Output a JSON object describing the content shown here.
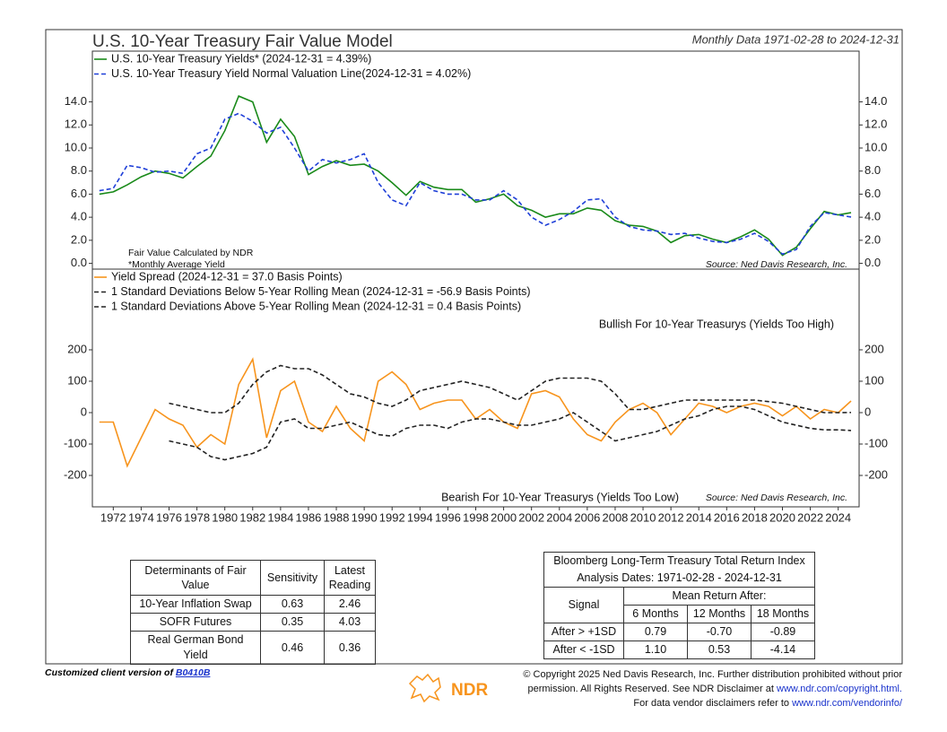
{
  "chart_data": [
    {
      "type": "line",
      "title": "U.S. 10-Year Treasury Fair Value Model",
      "subtitle": "Monthly Data 1971-02-28 to 2024-12-31",
      "xlim": [
        1970.5,
        2025.5
      ],
      "ylim": [
        -0.5,
        18.4
      ],
      "yticks": [
        {
          "value": 0,
          "label": "0.0"
        },
        {
          "value": 2,
          "label": "2.0"
        },
        {
          "value": 4,
          "label": "4.0"
        },
        {
          "value": 6,
          "label": "6.0"
        },
        {
          "value": 8,
          "label": "8.0"
        },
        {
          "value": 10,
          "label": "10.0"
        },
        {
          "value": 12,
          "label": "12.0"
        },
        {
          "value": 14,
          "label": "14.0"
        }
      ],
      "x": [
        1971,
        1972,
        1973,
        1974,
        1975,
        1976,
        1977,
        1978,
        1979,
        1980,
        1981,
        1982,
        1983,
        1984,
        1985,
        1986,
        1987,
        1988,
        1989,
        1990,
        1991,
        1992,
        1993,
        1994,
        1995,
        1996,
        1997,
        1998,
        1999,
        2000,
        2001,
        2002,
        2003,
        2004,
        2005,
        2006,
        2007,
        2008,
        2009,
        2010,
        2011,
        2012,
        2013,
        2014,
        2015,
        2016,
        2017,
        2018,
        2019,
        2020,
        2021,
        2022,
        2023,
        2024,
        2024.92
      ],
      "series": [
        {
          "name": "U.S. 10-Year Treasury Yields* (2024-12-31 = 4.39%)",
          "color": "#1a8a1a",
          "style": "solid",
          "values": [
            6.0,
            6.2,
            6.8,
            7.5,
            8.0,
            7.8,
            7.4,
            8.4,
            9.3,
            11.5,
            14.5,
            14.0,
            10.5,
            12.5,
            11.0,
            7.7,
            8.4,
            8.9,
            8.5,
            8.6,
            8.0,
            7.0,
            5.9,
            7.1,
            6.6,
            6.4,
            6.4,
            5.3,
            5.6,
            6.0,
            5.0,
            4.6,
            4.0,
            4.3,
            4.3,
            4.8,
            4.6,
            3.7,
            3.3,
            3.2,
            2.8,
            1.8,
            2.4,
            2.5,
            2.1,
            1.8,
            2.3,
            2.9,
            2.1,
            0.7,
            1.4,
            3.0,
            4.5,
            4.2,
            4.39
          ]
        },
        {
          "name": "U.S. 10-Year Treasury Yield Normal Valuation Line(2024-12-31 = 4.02%)",
          "color": "#1f3fd8",
          "style": "dashed",
          "values": [
            6.3,
            6.5,
            8.5,
            8.3,
            7.9,
            8.0,
            7.8,
            9.5,
            10.0,
            12.5,
            13.0,
            12.3,
            11.3,
            11.8,
            10.0,
            8.0,
            9.0,
            8.7,
            9.0,
            9.5,
            7.0,
            5.5,
            5.0,
            7.0,
            6.3,
            6.0,
            6.0,
            5.5,
            5.5,
            6.3,
            5.5,
            4.0,
            3.3,
            3.8,
            4.5,
            5.5,
            5.6,
            4.0,
            3.2,
            2.9,
            2.8,
            2.5,
            2.6,
            2.2,
            1.9,
            1.8,
            2.1,
            2.6,
            1.9,
            0.8,
            1.2,
            3.2,
            4.4,
            4.2,
            4.02
          ]
        }
      ],
      "notes": [
        "Fair Value Calculated by NDR",
        "*Monthly Average Yield"
      ],
      "source": "Source:  Ned Davis Research, Inc."
    },
    {
      "type": "line",
      "xlim": [
        1970.5,
        2025.5
      ],
      "ylim": [
        -300,
        457
      ],
      "yticks": [
        -200,
        -100,
        0,
        100,
        200
      ],
      "xticks": [
        1972,
        1974,
        1976,
        1978,
        1980,
        1982,
        1984,
        1986,
        1988,
        1990,
        1992,
        1994,
        1996,
        1998,
        2000,
        2002,
        2004,
        2006,
        2008,
        2010,
        2012,
        2014,
        2016,
        2018,
        2020,
        2022,
        2024
      ],
      "x": [
        1971,
        1972,
        1973,
        1974,
        1975,
        1976,
        1977,
        1978,
        1979,
        1980,
        1981,
        1982,
        1983,
        1984,
        1985,
        1986,
        1987,
        1988,
        1989,
        1990,
        1991,
        1992,
        1993,
        1994,
        1995,
        1996,
        1997,
        1998,
        1999,
        2000,
        2001,
        2002,
        2003,
        2004,
        2005,
        2006,
        2007,
        2008,
        2009,
        2010,
        2011,
        2012,
        2013,
        2014,
        2015,
        2016,
        2017,
        2018,
        2019,
        2020,
        2021,
        2022,
        2023,
        2024,
        2024.92
      ],
      "series": [
        {
          "name": "Yield Spread (2024-12-31 = 37.0 Basis Points)",
          "color": "#f7941d",
          "style": "solid",
          "values": [
            -30,
            -30,
            -170,
            -80,
            10,
            -20,
            -40,
            -110,
            -70,
            -100,
            90,
            170,
            -80,
            70,
            100,
            -30,
            -60,
            20,
            -50,
            -90,
            100,
            130,
            90,
            10,
            30,
            40,
            40,
            -20,
            10,
            -30,
            -50,
            60,
            70,
            50,
            -20,
            -70,
            -90,
            -30,
            10,
            30,
            0,
            -70,
            -20,
            30,
            20,
            0,
            20,
            30,
            20,
            -10,
            20,
            -20,
            10,
            0,
            37
          ]
        },
        {
          "name": "1 Standard Deviations Below 5-Year Rolling Mean (2024-12-31 = -56.9 Basis Points)",
          "color": "#222222",
          "style": "dashed",
          "values": [
            null,
            null,
            null,
            null,
            null,
            -90,
            -100,
            -110,
            -140,
            -150,
            -140,
            -130,
            -110,
            -30,
            -20,
            -50,
            -50,
            -40,
            -30,
            -50,
            -70,
            -75,
            -50,
            -40,
            -40,
            -50,
            -30,
            -20,
            -20,
            -30,
            -40,
            -40,
            -30,
            -20,
            0,
            -30,
            -60,
            -90,
            -80,
            -70,
            -60,
            -40,
            -20,
            -10,
            10,
            20,
            20,
            10,
            -10,
            -30,
            -40,
            -50,
            -55,
            -55,
            -56.9
          ]
        },
        {
          "name": "1 Standard Deviations Above 5-Year Rolling Mean (2024-12-31 = 0.4 Basis Points)",
          "color": "#222222",
          "style": "dashed",
          "values": [
            null,
            null,
            null,
            null,
            null,
            30,
            20,
            10,
            0,
            0,
            30,
            90,
            130,
            150,
            140,
            140,
            120,
            90,
            60,
            50,
            30,
            20,
            40,
            70,
            80,
            90,
            100,
            90,
            80,
            60,
            40,
            70,
            100,
            110,
            110,
            110,
            100,
            60,
            10,
            10,
            20,
            30,
            40,
            40,
            40,
            40,
            40,
            40,
            35,
            30,
            20,
            10,
            0,
            0,
            0.4
          ]
        }
      ],
      "annotations": [
        "Bullish For 10-Year Treasurys (Yields Too High)",
        "Bearish For 10-Year Treasurys (Yields Too Low)"
      ],
      "source": "Source:  Ned Davis Research, Inc."
    }
  ],
  "table1": {
    "header": [
      "Determinants of Fair Value",
      "Sensitivity",
      "Latest Reading"
    ],
    "rows": [
      [
        "10-Year Inflation Swap",
        "0.63",
        "2.46"
      ],
      [
        "SOFR Futures",
        "0.35",
        "4.03"
      ],
      [
        "Real German Bond Yield",
        "0.46",
        "0.36"
      ]
    ]
  },
  "table2": {
    "title": [
      "Bloomberg Long-Term Treasury Total Return Index",
      "Analysis Dates: 1971-02-28 - 2024-12-31"
    ],
    "signal": "Signal",
    "group": "Mean Return After:",
    "columns": [
      "6 Months",
      "12 Months",
      "18 Months"
    ],
    "rows": [
      [
        "After > +1SD",
        "0.79",
        "-0.70",
        "-0.89"
      ],
      [
        "After < -1SD",
        "1.10",
        "0.53",
        "-4.14"
      ]
    ]
  },
  "footer": {
    "client": "Customized client version of",
    "code": "B0410B",
    "logo": "NDR",
    "copyright": [
      "© Copyright 2025 Ned Davis Research, Inc. Further distribution prohibited without prior",
      "permission. All Rights Reserved. See NDR Disclaimer at",
      "www.ndr.com/copyright.html.",
      "For data vendor disclaimers refer to",
      "www.ndr.com/vendorinfo/"
    ]
  }
}
